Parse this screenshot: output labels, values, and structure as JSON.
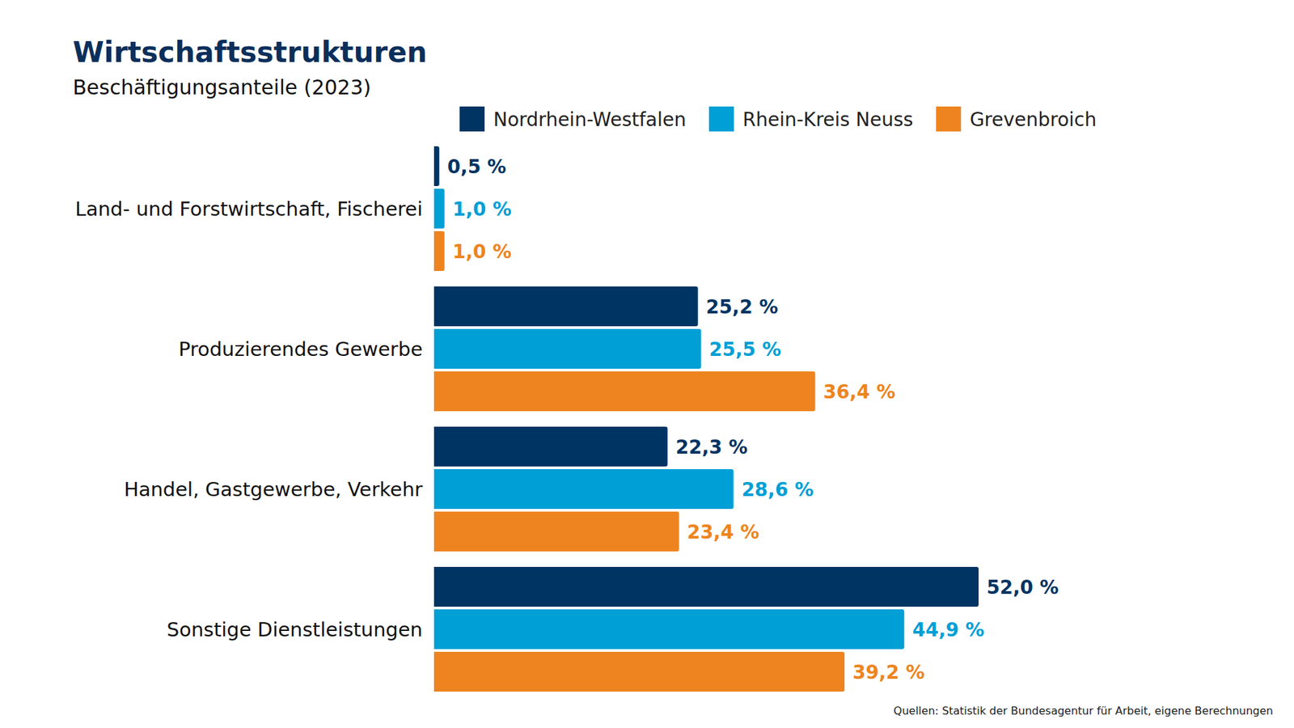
{
  "chart_data": {
    "type": "bar",
    "orientation": "horizontal",
    "title": "Wirtschaftsstrukturen",
    "subtitle": "Beschäftigungsanteile (2023)",
    "source": "Quellen: Statistik der Bundesagentur für Arbeit, eigene Berechnungen",
    "categories": [
      "Land- und Forstwirtschaft, Fischerei",
      "Produzierendes Gewerbe",
      "Handel, Gastgewerbe, Verkehr",
      "Sonstige Dienstleistungen"
    ],
    "series": [
      {
        "name": "Nordrhein-Westfalen",
        "color": "#003463",
        "values": [
          0.5,
          25.2,
          22.3,
          52.0
        ],
        "value_labels": [
          "0,5 %",
          "25,2 %",
          "22,3 %",
          "52,0 %"
        ]
      },
      {
        "name": "Rhein-Kreis Neuss",
        "color": "#009fd6",
        "values": [
          1.0,
          25.5,
          28.6,
          44.9
        ],
        "value_labels": [
          "1,0 %",
          "25,5 %",
          "28,6 %",
          "44,9 %"
        ]
      },
      {
        "name": "Grevenbroich",
        "color": "#ee8420",
        "values": [
          1.0,
          36.4,
          23.4,
          39.2
        ],
        "value_labels": [
          "1,0 %",
          "36,4 %",
          "23,4 %",
          "39,2 %"
        ]
      }
    ],
    "xlim": [
      0,
      52
    ],
    "legend": "top",
    "data_labels": true,
    "tick_labels": false,
    "grid": false
  }
}
